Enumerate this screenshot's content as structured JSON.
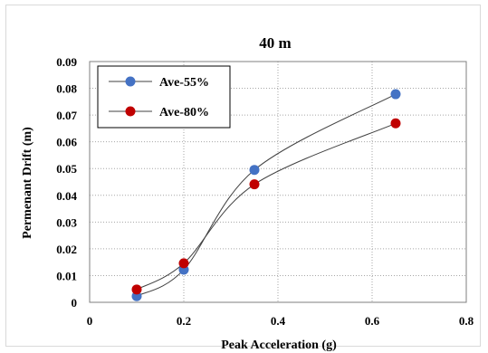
{
  "chart_data": {
    "type": "line",
    "title": "40 m",
    "xlabel": "Peak Acceleration (g)",
    "ylabel": "Permenant  Drift (m)",
    "xlim": [
      0,
      0.8
    ],
    "ylim": [
      0,
      0.09
    ],
    "x_ticks": [
      "0",
      "0.2",
      "0.4",
      "0.6",
      "0.8"
    ],
    "y_ticks": [
      "0",
      "0.01",
      "0.02",
      "0.03",
      "0.04",
      "0.05",
      "0.06",
      "0.07",
      "0.08",
      "0.09"
    ],
    "x_tick_values": [
      0,
      0.2,
      0.4,
      0.6,
      0.8
    ],
    "y_tick_values": [
      0,
      0.01,
      0.02,
      0.03,
      0.04,
      0.05,
      0.06,
      0.07,
      0.08,
      0.09
    ],
    "grid": true,
    "smooth": true,
    "legend_position": "top-left",
    "series": [
      {
        "name": "Ave-55%",
        "color": "#4472c4",
        "x": [
          0.1,
          0.2,
          0.35,
          0.65
        ],
        "y": [
          0.0023,
          0.0122,
          0.0495,
          0.0778
        ]
      },
      {
        "name": "Ave-80%",
        "color": "#c00000",
        "x": [
          0.1,
          0.2,
          0.35,
          0.65
        ],
        "y": [
          0.0048,
          0.0146,
          0.0441,
          0.0669
        ]
      }
    ]
  }
}
